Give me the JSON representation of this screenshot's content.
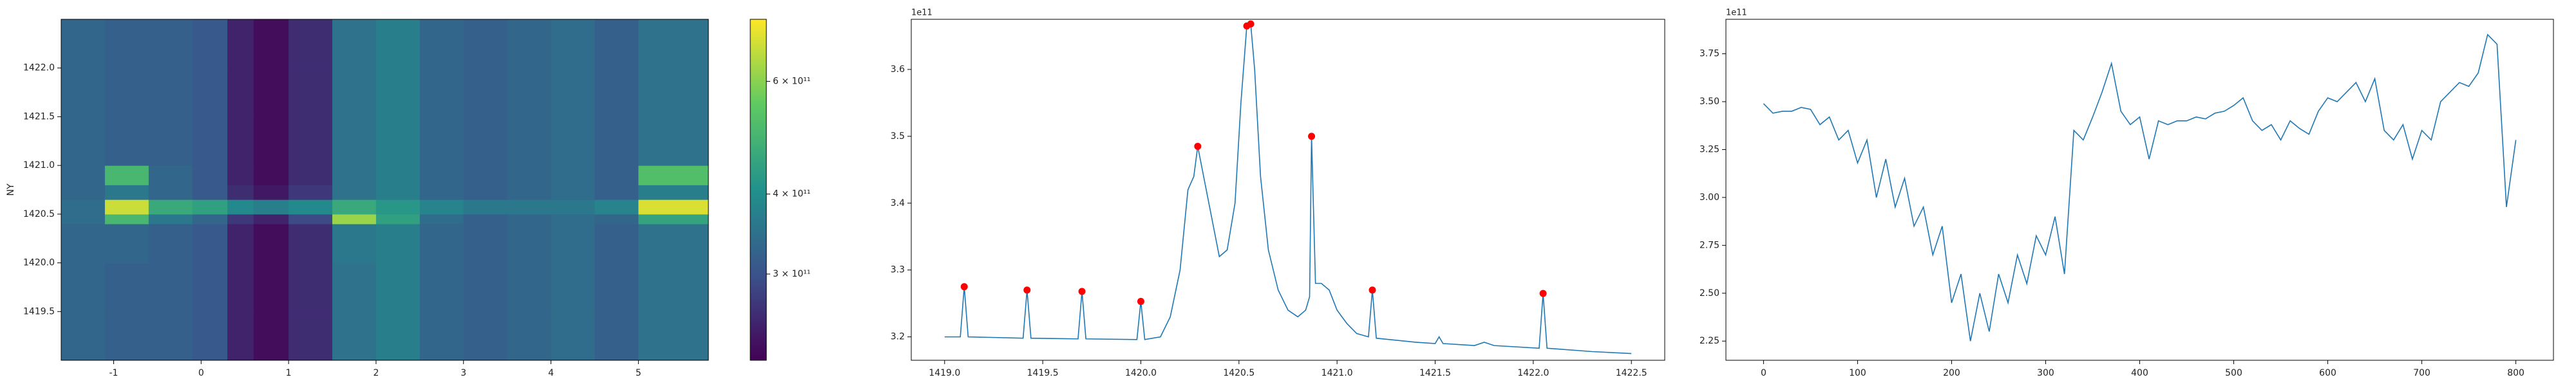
{
  "chart_data": [
    {
      "type": "heatmap",
      "ylabel": "NY",
      "x_edges": [
        -1.6,
        -1.1,
        -0.6,
        -0.1,
        0.3,
        0.6,
        1.0,
        1.5,
        2.0,
        2.5,
        3.0,
        3.5,
        4.0,
        4.5,
        5.0,
        5.8
      ],
      "y_edges": [
        1419.0,
        1419.5,
        1420.0,
        1420.4,
        1420.5,
        1420.65,
        1420.8,
        1421.0,
        1421.5,
        1422.0,
        1422.5
      ],
      "z": [
        [
          330000000000.0,
          320000000000.0,
          320000000000.0,
          310000000000.0,
          250000000000.0,
          230000000000.0,
          260000000000.0,
          350000000000.0,
          370000000000.0,
          330000000000.0,
          320000000000.0,
          330000000000.0,
          340000000000.0,
          320000000000.0,
          350000000000.0
        ],
        [
          330000000000.0,
          320000000000.0,
          320000000000.0,
          310000000000.0,
          250000000000.0,
          230000000000.0,
          260000000000.0,
          350000000000.0,
          370000000000.0,
          330000000000.0,
          320000000000.0,
          330000000000.0,
          340000000000.0,
          320000000000.0,
          350000000000.0
        ],
        [
          330000000000.0,
          330000000000.0,
          320000000000.0,
          310000000000.0,
          250000000000.0,
          230000000000.0,
          260000000000.0,
          360000000000.0,
          370000000000.0,
          330000000000.0,
          320000000000.0,
          330000000000.0,
          340000000000.0,
          320000000000.0,
          350000000000.0
        ],
        [
          340000000000.0,
          500000000000.0,
          360000000000.0,
          330000000000.0,
          270000000000.0,
          250000000000.0,
          290000000000.0,
          620000000000.0,
          440000000000.0,
          340000000000.0,
          320000000000.0,
          330000000000.0,
          340000000000.0,
          330000000000.0,
          450000000000.0
        ],
        [
          340000000000.0,
          680000000000.0,
          460000000000.0,
          440000000000.0,
          390000000000.0,
          370000000000.0,
          390000000000.0,
          460000000000.0,
          420000000000.0,
          380000000000.0,
          360000000000.0,
          360000000000.0,
          360000000000.0,
          380000000000.0,
          700000000000.0
        ],
        [
          330000000000.0,
          360000000000.0,
          330000000000.0,
          310000000000.0,
          260000000000.0,
          240000000000.0,
          270000000000.0,
          350000000000.0,
          370000000000.0,
          330000000000.0,
          320000000000.0,
          330000000000.0,
          340000000000.0,
          320000000000.0,
          370000000000.0
        ],
        [
          330000000000.0,
          500000000000.0,
          330000000000.0,
          310000000000.0,
          250000000000.0,
          230000000000.0,
          260000000000.0,
          350000000000.0,
          370000000000.0,
          330000000000.0,
          320000000000.0,
          330000000000.0,
          340000000000.0,
          320000000000.0,
          520000000000.0
        ],
        [
          330000000000.0,
          320000000000.0,
          320000000000.0,
          310000000000.0,
          250000000000.0,
          230000000000.0,
          260000000000.0,
          350000000000.0,
          370000000000.0,
          330000000000.0,
          320000000000.0,
          330000000000.0,
          340000000000.0,
          320000000000.0,
          350000000000.0
        ],
        [
          330000000000.0,
          320000000000.0,
          320000000000.0,
          310000000000.0,
          250000000000.0,
          230000000000.0,
          260000000000.0,
          350000000000.0,
          370000000000.0,
          330000000000.0,
          320000000000.0,
          330000000000.0,
          340000000000.0,
          320000000000.0,
          350000000000.0
        ],
        [
          330000000000.0,
          320000000000.0,
          320000000000.0,
          310000000000.0,
          250000000000.0,
          230000000000.0,
          260000000000.0,
          350000000000.0,
          370000000000.0,
          330000000000.0,
          320000000000.0,
          330000000000.0,
          340000000000.0,
          320000000000.0,
          350000000000.0
        ]
      ],
      "xlim": [
        -1.6,
        5.8
      ],
      "ylim": [
        1419.0,
        1422.5
      ],
      "xticks": [
        -1,
        0,
        1,
        2,
        3,
        4,
        5
      ],
      "yticks": [
        1419.5,
        {
          "value": 1420,
          "label": "1420.0"
        },
        1420.5,
        {
          "value": 1421,
          "label": "1421.0"
        },
        1421.5,
        {
          "value": 1422,
          "label": "1422.0"
        }
      ],
      "colorbar": {
        "scale": "log",
        "colormap": "viridis",
        "clim": [
          220000000000.0,
          750000000000.0
        ],
        "ticks": [
          {
            "value": 300000000000.0,
            "label": "3 × 10¹¹"
          },
          {
            "value": 400000000000.0,
            "label": "4 × 10¹¹"
          },
          {
            "value": 600000000000.0,
            "label": "6 × 10¹¹"
          }
        ]
      }
    },
    {
      "type": "line",
      "offset_text": "1e11",
      "xlim": [
        1418.83,
        1422.67
      ],
      "ylim": [
        3.165,
        3.675
      ],
      "xticks": [
        {
          "value": 1419,
          "label": "1419.0"
        },
        1419.5,
        {
          "value": 1420,
          "label": "1420.0"
        },
        1420.5,
        {
          "value": 1421,
          "label": "1421.0"
        },
        1421.5,
        {
          "value": 1422,
          "label": "1422.0"
        },
        1422.5
      ],
      "yticks": [
        3.2,
        3.3,
        3.4,
        3.5,
        3.6
      ],
      "series": [
        {
          "color": "#1f77b4",
          "x": [
            1419.0,
            1419.08,
            1419.1,
            1419.12,
            1419.4,
            1419.42,
            1419.44,
            1419.68,
            1419.7,
            1419.72,
            1419.98,
            1420.0,
            1420.02,
            1420.1,
            1420.15,
            1420.2,
            1420.24,
            1420.27,
            1420.29,
            1420.32,
            1420.36,
            1420.4,
            1420.44,
            1420.48,
            1420.51,
            1420.54,
            1420.56,
            1420.58,
            1420.61,
            1420.65,
            1420.7,
            1420.75,
            1420.8,
            1420.84,
            1420.86,
            1420.87,
            1420.89,
            1420.92,
            1420.96,
            1421.0,
            1421.05,
            1421.1,
            1421.16,
            1421.18,
            1421.2,
            1421.4,
            1421.5,
            1421.52,
            1421.54,
            1421.7,
            1421.75,
            1421.8,
            1422.03,
            1422.05,
            1422.07,
            1422.3,
            1422.5
          ],
          "values": [
            3.2,
            3.2,
            3.275,
            3.2,
            3.198,
            3.27,
            3.198,
            3.197,
            3.268,
            3.197,
            3.196,
            3.253,
            3.196,
            3.2,
            3.23,
            3.3,
            3.42,
            3.44,
            3.485,
            3.44,
            3.38,
            3.32,
            3.33,
            3.4,
            3.55,
            3.665,
            3.668,
            3.6,
            3.44,
            3.33,
            3.27,
            3.24,
            3.23,
            3.24,
            3.26,
            3.5,
            3.28,
            3.28,
            3.27,
            3.24,
            3.22,
            3.205,
            3.2,
            3.27,
            3.198,
            3.192,
            3.19,
            3.2,
            3.19,
            3.187,
            3.192,
            3.187,
            3.183,
            3.265,
            3.183,
            3.178,
            3.175
          ]
        },
        {
          "color": "#ff0000",
          "marker": "o",
          "x": [
            1419.1,
            1419.42,
            1419.7,
            1420.0,
            1420.29,
            1420.54,
            1420.56,
            1420.87,
            1421.18,
            1422.05
          ],
          "values": [
            3.275,
            3.27,
            3.268,
            3.253,
            3.485,
            3.665,
            3.668,
            3.5,
            3.27,
            3.265
          ]
        }
      ]
    },
    {
      "type": "line",
      "offset_text": "1e11",
      "xlim": [
        -40,
        840
      ],
      "ylim": [
        2.15,
        3.93
      ],
      "xticks": [
        0,
        100,
        200,
        300,
        400,
        500,
        600,
        700,
        800
      ],
      "yticks": [
        2.25,
        {
          "value": 2.5,
          "label": "2.50"
        },
        2.75,
        {
          "value": 3,
          "label": "3.00"
        },
        3.25,
        {
          "value": 3.5,
          "label": "3.50"
        },
        3.75
      ],
      "series": [
        {
          "color": "#1f77b4",
          "x": [
            0,
            10,
            20,
            30,
            40,
            50,
            60,
            70,
            80,
            90,
            100,
            110,
            120,
            130,
            140,
            150,
            160,
            170,
            180,
            190,
            200,
            210,
            220,
            230,
            240,
            250,
            260,
            270,
            280,
            290,
            300,
            310,
            320,
            330,
            340,
            350,
            360,
            370,
            380,
            390,
            400,
            410,
            420,
            430,
            440,
            450,
            460,
            470,
            480,
            490,
            500,
            510,
            520,
            530,
            540,
            550,
            560,
            570,
            580,
            590,
            600,
            610,
            620,
            630,
            640,
            650,
            660,
            670,
            680,
            690,
            700,
            710,
            720,
            730,
            740,
            750,
            760,
            770,
            780,
            790,
            800
          ],
          "values": [
            3.49,
            3.44,
            3.45,
            3.45,
            3.47,
            3.46,
            3.38,
            3.42,
            3.3,
            3.35,
            3.18,
            3.3,
            3.0,
            3.2,
            2.95,
            3.1,
            2.85,
            2.95,
            2.7,
            2.85,
            2.45,
            2.6,
            2.25,
            2.5,
            2.3,
            2.6,
            2.45,
            2.7,
            2.55,
            2.8,
            2.7,
            2.9,
            2.6,
            3.35,
            3.3,
            3.42,
            3.55,
            3.7,
            3.45,
            3.38,
            3.42,
            3.2,
            3.4,
            3.38,
            3.4,
            3.4,
            3.42,
            3.41,
            3.44,
            3.45,
            3.48,
            3.52,
            3.4,
            3.35,
            3.38,
            3.3,
            3.4,
            3.36,
            3.33,
            3.45,
            3.52,
            3.5,
            3.55,
            3.6,
            3.5,
            3.62,
            3.35,
            3.3,
            3.38,
            3.2,
            3.35,
            3.3,
            3.5,
            3.55,
            3.6,
            3.58,
            3.65,
            3.85,
            3.8,
            2.95,
            3.3
          ]
        }
      ]
    }
  ]
}
